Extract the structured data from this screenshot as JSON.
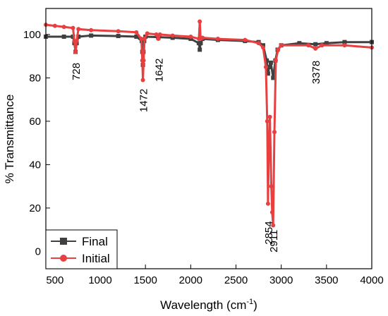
{
  "chart_data": {
    "type": "line",
    "xlabel_main": "Wavelength (cm",
    "xlabel_sup": "-1",
    "xlabel_close": ")",
    "ylabel": "% Transmittance",
    "xlim": [
      400,
      4000
    ],
    "ylim": [
      -8,
      112
    ],
    "x_ticks": [
      500,
      1000,
      1500,
      2000,
      2500,
      3000,
      3500,
      4000
    ],
    "y_ticks": [
      0,
      20,
      40,
      60,
      80,
      100
    ],
    "grid": false,
    "legend_position": "bottom-left",
    "series": [
      {
        "name": "Final",
        "color": "#404040",
        "marker": "square",
        "x": [
          400,
          600,
          700,
          715,
          728,
          740,
          760,
          900,
          1200,
          1400,
          1460,
          1466,
          1472,
          1478,
          1486,
          1500,
          1640,
          1642,
          1644,
          1800,
          2000,
          2090,
          2100,
          2110,
          2130,
          2300,
          2600,
          2750,
          2800,
          2840,
          2854,
          2868,
          2885,
          2911,
          2935,
          2960,
          3000,
          3200,
          3378,
          3500,
          3700,
          4000
        ],
        "y": [
          99,
          99,
          99,
          96,
          92,
          96,
          99,
          99.5,
          99.3,
          99,
          97,
          92,
          86,
          92,
          97,
          99,
          98.8,
          98.5,
          98.8,
          98.5,
          98,
          96,
          93,
          96,
          98,
          97.5,
          97,
          96.5,
          95,
          88,
          82,
          85,
          87,
          80,
          88,
          93,
          95,
          96,
          95.5,
          96,
          96.5,
          96.5
        ]
      },
      {
        "name": "Initial",
        "color": "#e84040",
        "marker": "circle",
        "x": [
          400,
          500,
          600,
          700,
          715,
          728,
          740,
          760,
          900,
          1200,
          1400,
          1455,
          1465,
          1472,
          1480,
          1490,
          1520,
          1620,
          1642,
          1660,
          1800,
          2000,
          2090,
          2100,
          2110,
          2130,
          2300,
          2600,
          2750,
          2800,
          2830,
          2845,
          2854,
          2862,
          2875,
          2890,
          2900,
          2911,
          2925,
          2940,
          2965,
          3000,
          3300,
          3378,
          3450,
          3700,
          4000
        ],
        "y": [
          104.5,
          104,
          103.5,
          103,
          97,
          92,
          97,
          102.5,
          102,
          101.5,
          101,
          98,
          88,
          79,
          88,
          98,
          100.5,
          100,
          98,
          100,
          99.5,
          99,
          98,
          106,
          98,
          98.5,
          98,
          97.5,
          96,
          94,
          85,
          60,
          22,
          45,
          62,
          30,
          18,
          12,
          55,
          88,
          93,
          95,
          95,
          93.5,
          95,
          95,
          94
        ]
      }
    ],
    "annotations": [
      {
        "text": "728",
        "x": 728,
        "y": 87
      },
      {
        "text": "1472",
        "x": 1472,
        "y": 75
      },
      {
        "text": "1642",
        "x": 1642,
        "y": 89
      },
      {
        "text": "2854",
        "x": 2854,
        "y": 14
      },
      {
        "text": "2911",
        "x": 2911,
        "y": 10
      },
      {
        "text": "3378",
        "x": 3378,
        "y": 88
      }
    ]
  }
}
